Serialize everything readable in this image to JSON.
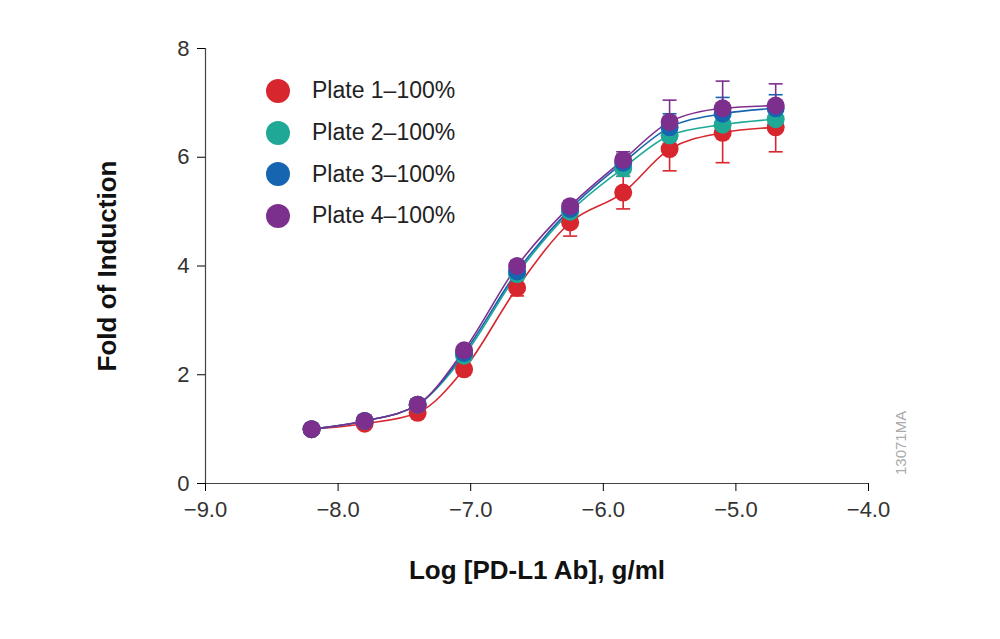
{
  "chart_data": {
    "type": "line",
    "x_label": "Log [PD-L1 Ab], g/ml",
    "y_label": "Fold of Induction",
    "annotation": "13071MA",
    "x": [
      -8.2,
      -7.8,
      -7.4,
      -7.05,
      -6.65,
      -6.25,
      -5.85,
      -5.5,
      -5.1,
      -4.7
    ],
    "series": [
      {
        "name": "Plate 1–100%",
        "color": "#d7262e",
        "marker": "circle",
        "line_style": "smooth",
        "values": [
          1.0,
          1.1,
          1.3,
          2.1,
          3.6,
          4.8,
          5.35,
          6.15,
          6.45,
          6.55
        ],
        "error": [
          0.05,
          0.05,
          0.05,
          0.1,
          0.15,
          0.25,
          0.3,
          0.4,
          0.55,
          0.45
        ]
      },
      {
        "name": "Plate 2–100%",
        "color": "#1fa896",
        "marker": "circle",
        "line_style": "smooth",
        "values": [
          1.0,
          1.15,
          1.45,
          2.35,
          3.85,
          5.0,
          5.8,
          6.4,
          6.6,
          6.7
        ],
        "error": [
          0.05,
          0.05,
          0.05,
          0.05,
          0.1,
          0.1,
          0.15,
          0.2,
          0.2,
          0.2
        ]
      },
      {
        "name": "Plate 3–100%",
        "color": "#1565b0",
        "marker": "circle",
        "line_style": "smooth",
        "values": [
          1.0,
          1.15,
          1.45,
          2.4,
          3.9,
          5.05,
          5.9,
          6.55,
          6.8,
          6.9
        ],
        "error": [
          0.05,
          0.05,
          0.05,
          0.05,
          0.1,
          0.1,
          0.15,
          0.25,
          0.3,
          0.25
        ]
      },
      {
        "name": "Plate 4–100%",
        "color": "#7d2f8e",
        "marker": "circle",
        "line_style": "smooth",
        "values": [
          1.0,
          1.15,
          1.45,
          2.45,
          4.0,
          5.1,
          5.95,
          6.65,
          6.9,
          6.95
        ],
        "error": [
          0.05,
          0.05,
          0.05,
          0.05,
          0.1,
          0.1,
          0.15,
          0.4,
          0.5,
          0.4
        ]
      }
    ],
    "xlim": [
      -9,
      -4
    ],
    "xticks": [
      -9,
      -8,
      -7,
      -6,
      -5,
      -4
    ],
    "ylim": [
      0,
      8
    ],
    "yticks": [
      0,
      2,
      4,
      6,
      8
    ],
    "grid": false,
    "legend": "top-left"
  }
}
